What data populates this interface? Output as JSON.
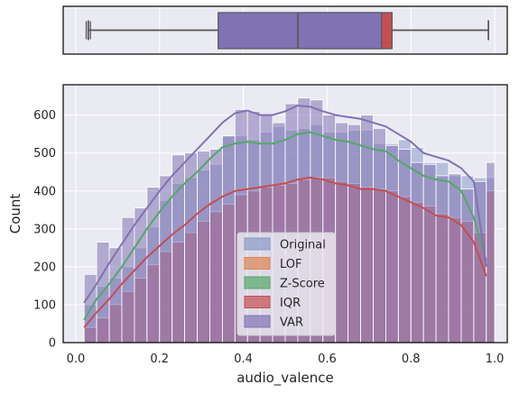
{
  "chart_data": {
    "type": "histogram",
    "xlabel": "audio_valence",
    "ylabel": "Count",
    "xlim": [
      -0.03,
      1.03
    ],
    "ylim": [
      0,
      680
    ],
    "xticks": [
      "0.0",
      "0.2",
      "0.4",
      "0.6",
      "0.8",
      "1.0"
    ],
    "xtick_values": [
      0.0,
      0.2,
      0.4,
      0.6,
      0.8,
      1.0
    ],
    "yticks": [
      "0",
      "100",
      "200",
      "300",
      "400",
      "500",
      "600"
    ],
    "ytick_values": [
      0,
      100,
      200,
      300,
      400,
      500,
      600
    ],
    "grid": true,
    "legend_position": "lower-center",
    "bin_edges": [
      0.02,
      0.05,
      0.08,
      0.11,
      0.14,
      0.17,
      0.2,
      0.23,
      0.26,
      0.29,
      0.32,
      0.35,
      0.38,
      0.41,
      0.44,
      0.47,
      0.5,
      0.53,
      0.56,
      0.59,
      0.62,
      0.65,
      0.68,
      0.71,
      0.74,
      0.77,
      0.8,
      0.83,
      0.86,
      0.89,
      0.92,
      0.95,
      0.98,
      1.0
    ],
    "series": [
      {
        "name": "Original",
        "color": "#8a9ac8",
        "counts": [
          100,
          148,
          170,
          200,
          250,
          305,
          375,
          420,
          435,
          455,
          470,
          545,
          545,
          535,
          555,
          570,
          560,
          565,
          575,
          555,
          555,
          560,
          560,
          525,
          525,
          535,
          515,
          475,
          475,
          440,
          440,
          435,
          435
        ],
        "kde": [
          [
            0.02,
            60
          ],
          [
            0.05,
            115
          ],
          [
            0.08,
            155
          ],
          [
            0.11,
            200
          ],
          [
            0.14,
            250
          ],
          [
            0.17,
            300
          ],
          [
            0.2,
            345
          ],
          [
            0.23,
            385
          ],
          [
            0.26,
            420
          ],
          [
            0.29,
            450
          ],
          [
            0.32,
            485
          ],
          [
            0.35,
            515
          ],
          [
            0.38,
            525
          ],
          [
            0.41,
            530
          ],
          [
            0.44,
            525
          ],
          [
            0.47,
            525
          ],
          [
            0.5,
            535
          ],
          [
            0.53,
            550
          ],
          [
            0.56,
            555
          ],
          [
            0.59,
            545
          ],
          [
            0.62,
            535
          ],
          [
            0.65,
            530
          ],
          [
            0.68,
            520
          ],
          [
            0.71,
            510
          ],
          [
            0.74,
            505
          ],
          [
            0.77,
            480
          ],
          [
            0.8,
            460
          ],
          [
            0.83,
            440
          ],
          [
            0.86,
            430
          ],
          [
            0.89,
            425
          ],
          [
            0.92,
            400
          ],
          [
            0.95,
            330
          ],
          [
            0.98,
            215
          ]
        ]
      },
      {
        "name": "LOF",
        "color": "#dd8452",
        "counts": [],
        "kde": []
      },
      {
        "name": "Z-Score",
        "color": "#55a868",
        "counts": [],
        "kde": [
          [
            0.02,
            60
          ],
          [
            0.05,
            115
          ],
          [
            0.08,
            155
          ],
          [
            0.11,
            200
          ],
          [
            0.14,
            250
          ],
          [
            0.17,
            300
          ],
          [
            0.2,
            345
          ],
          [
            0.23,
            385
          ],
          [
            0.26,
            420
          ],
          [
            0.29,
            450
          ],
          [
            0.32,
            485
          ],
          [
            0.35,
            515
          ],
          [
            0.38,
            525
          ],
          [
            0.41,
            530
          ],
          [
            0.44,
            525
          ],
          [
            0.47,
            525
          ],
          [
            0.5,
            535
          ],
          [
            0.53,
            550
          ],
          [
            0.56,
            555
          ],
          [
            0.59,
            545
          ],
          [
            0.62,
            535
          ],
          [
            0.65,
            530
          ],
          [
            0.68,
            520
          ],
          [
            0.71,
            510
          ],
          [
            0.74,
            505
          ],
          [
            0.77,
            480
          ],
          [
            0.8,
            460
          ],
          [
            0.83,
            440
          ],
          [
            0.86,
            430
          ],
          [
            0.89,
            425
          ],
          [
            0.92,
            400
          ],
          [
            0.95,
            330
          ],
          [
            0.98,
            215
          ]
        ]
      },
      {
        "name": "IQR",
        "color": "#c44e52",
        "counts": [
          40,
          65,
          100,
          135,
          170,
          205,
          240,
          265,
          290,
          320,
          345,
          365,
          390,
          400,
          410,
          415,
          420,
          430,
          435,
          435,
          425,
          420,
          410,
          405,
          400,
          385,
          370,
          360,
          340,
          330,
          320,
          290,
          400
        ],
        "kde": [
          [
            0.02,
            40
          ],
          [
            0.05,
            80
          ],
          [
            0.08,
            115
          ],
          [
            0.11,
            155
          ],
          [
            0.14,
            190
          ],
          [
            0.17,
            225
          ],
          [
            0.2,
            255
          ],
          [
            0.23,
            285
          ],
          [
            0.26,
            310
          ],
          [
            0.29,
            340
          ],
          [
            0.32,
            365
          ],
          [
            0.35,
            385
          ],
          [
            0.38,
            400
          ],
          [
            0.41,
            405
          ],
          [
            0.44,
            410
          ],
          [
            0.47,
            415
          ],
          [
            0.5,
            420
          ],
          [
            0.53,
            430
          ],
          [
            0.56,
            435
          ],
          [
            0.59,
            430
          ],
          [
            0.62,
            420
          ],
          [
            0.65,
            415
          ],
          [
            0.68,
            405
          ],
          [
            0.71,
            405
          ],
          [
            0.74,
            400
          ],
          [
            0.77,
            385
          ],
          [
            0.8,
            370
          ],
          [
            0.83,
            355
          ],
          [
            0.86,
            335
          ],
          [
            0.89,
            330
          ],
          [
            0.92,
            310
          ],
          [
            0.95,
            265
          ],
          [
            0.98,
            175
          ]
        ]
      },
      {
        "name": "VAR",
        "color": "#8172b3",
        "counts": [
          180,
          265,
          250,
          330,
          355,
          410,
          440,
          495,
          500,
          505,
          510,
          545,
          615,
          610,
          600,
          580,
          630,
          645,
          640,
          600,
          580,
          575,
          600,
          565,
          520,
          510,
          475,
          470,
          440,
          445,
          405,
          425,
          475
        ],
        "kde": [
          [
            0.02,
            105
          ],
          [
            0.05,
            155
          ],
          [
            0.08,
            210
          ],
          [
            0.11,
            260
          ],
          [
            0.14,
            310
          ],
          [
            0.17,
            355
          ],
          [
            0.2,
            400
          ],
          [
            0.23,
            440
          ],
          [
            0.26,
            475
          ],
          [
            0.29,
            510
          ],
          [
            0.32,
            545
          ],
          [
            0.35,
            580
          ],
          [
            0.38,
            605
          ],
          [
            0.41,
            612
          ],
          [
            0.44,
            600
          ],
          [
            0.47,
            600
          ],
          [
            0.5,
            610
          ],
          [
            0.53,
            625
          ],
          [
            0.56,
            622
          ],
          [
            0.59,
            610
          ],
          [
            0.62,
            600
          ],
          [
            0.65,
            595
          ],
          [
            0.68,
            590
          ],
          [
            0.71,
            580
          ],
          [
            0.74,
            570
          ],
          [
            0.77,
            550
          ],
          [
            0.8,
            530
          ],
          [
            0.83,
            500
          ],
          [
            0.86,
            490
          ],
          [
            0.89,
            480
          ],
          [
            0.92,
            460
          ],
          [
            0.95,
            425
          ],
          [
            0.98,
            200
          ]
        ]
      }
    ],
    "boxplot": {
      "xlim": [
        -0.03,
        1.03
      ],
      "boxes": [
        {
          "name": "VAR",
          "color": "#8172b3",
          "q1": 0.34,
          "median": 0.53,
          "q3": 0.73,
          "whisker_low": 0.03,
          "whisker_high": 0.985
        },
        {
          "name": "IQR",
          "color": "#c44e52",
          "q1": 0.55,
          "median": 0.55,
          "q3": 0.755,
          "whisker_low": 0.03,
          "whisker_high": 0.985
        }
      ],
      "outliers": [
        0.025,
        0.03,
        0.035
      ]
    }
  }
}
